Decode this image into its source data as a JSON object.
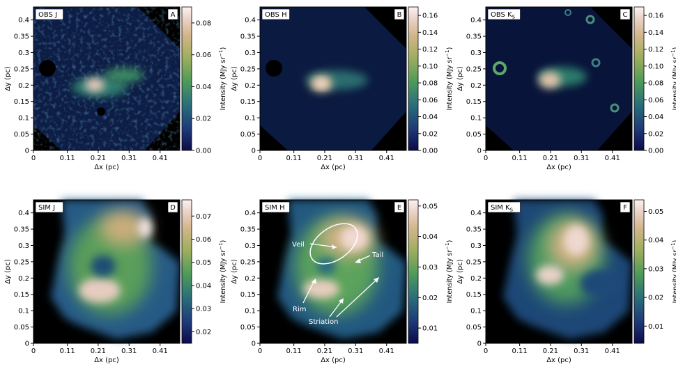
{
  "figure": {
    "x_tick_labels": [
      "0",
      "0.11",
      "0.21",
      "0.31",
      "0.41"
    ],
    "y_tick_labels": [
      "0",
      "0.05",
      "0.1",
      "0.15",
      "0.2",
      "0.25",
      "0.3",
      "0.35",
      "0.4"
    ],
    "xlabel": "Δx (pc)",
    "ylabel": "Δy (pc)",
    "colorbar_label": "Intensity (MJy sr",
    "colorbar_label_exp": "−1",
    "colorbar_label_close": ")"
  },
  "panels": [
    {
      "id": "A",
      "title": "OBS J",
      "sub": "",
      "letter": "A",
      "cbar_ticks": [
        "0.00",
        "0.02",
        "0.04",
        "0.06",
        "0.08"
      ],
      "cbar_min": 0.0,
      "cbar_max": 0.09
    },
    {
      "id": "B",
      "title": "OBS H",
      "sub": "",
      "letter": "B",
      "cbar_ticks": [
        "0.00",
        "0.02",
        "0.04",
        "0.06",
        "0.08",
        "0.10",
        "0.12",
        "0.14",
        "0.16"
      ],
      "cbar_min": 0.0,
      "cbar_max": 0.17
    },
    {
      "id": "C",
      "title": "OBS K",
      "sub": "S",
      "letter": "C",
      "cbar_ticks": [
        "0.00",
        "0.02",
        "0.04",
        "0.06",
        "0.08",
        "0.10",
        "0.12",
        "0.14",
        "0.16"
      ],
      "cbar_min": 0.0,
      "cbar_max": 0.17
    },
    {
      "id": "D",
      "title": "SIM J",
      "sub": "",
      "letter": "D",
      "cbar_ticks": [
        "0.02",
        "0.03",
        "0.04",
        "0.05",
        "0.06",
        "0.07"
      ],
      "cbar_min": 0.015,
      "cbar_max": 0.077
    },
    {
      "id": "E",
      "title": "SIM H",
      "sub": "",
      "letter": "E",
      "cbar_ticks": [
        "0.01",
        "0.02",
        "0.03",
        "0.04",
        "0.05"
      ],
      "cbar_min": 0.005,
      "cbar_max": 0.052
    },
    {
      "id": "F",
      "title": "SIM K",
      "sub": "S",
      "letter": "F",
      "cbar_ticks": [
        "0.01",
        "0.02",
        "0.03",
        "0.04",
        "0.05"
      ],
      "cbar_min": 0.004,
      "cbar_max": 0.054
    }
  ],
  "annotations": {
    "veil": "Veil",
    "tail": "Tail",
    "rim": "Rim",
    "striation": "Striation"
  }
}
